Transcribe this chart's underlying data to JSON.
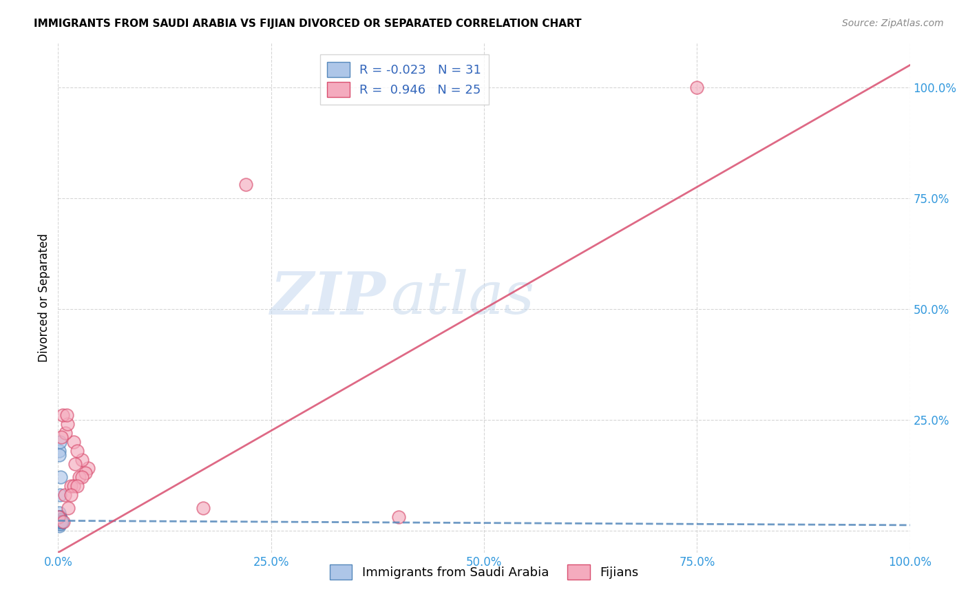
{
  "title": "IMMIGRANTS FROM SAUDI ARABIA VS FIJIAN DIVORCED OR SEPARATED CORRELATION CHART",
  "source": "Source: ZipAtlas.com",
  "ylabel": "Divorced or Separated",
  "legend_blue_r": "-0.023",
  "legend_blue_n": "31",
  "legend_pink_r": "0.946",
  "legend_pink_n": "25",
  "legend_blue_label": "Immigrants from Saudi Arabia",
  "legend_pink_label": "Fijians",
  "blue_color": "#aec6e8",
  "pink_color": "#f4abbe",
  "line_blue_color": "#5588bb",
  "line_pink_color": "#d94f70",
  "watermark_zip": "ZIP",
  "watermark_atlas": "atlas",
  "blue_scatter_x": [
    0.1,
    0.2,
    0.3,
    0.15,
    0.4,
    0.25,
    0.12,
    0.35,
    0.45,
    0.22,
    0.18,
    0.28,
    0.14,
    0.32,
    0.24,
    0.42,
    0.11,
    0.21,
    0.31,
    0.13,
    0.23,
    0.38,
    0.16,
    0.33,
    0.27,
    0.1,
    0.48,
    0.26,
    0.36,
    0.19,
    0.44
  ],
  "blue_scatter_y": [
    2.0,
    3.0,
    2.0,
    4.0,
    2.0,
    3.0,
    1.0,
    2.0,
    2.0,
    3.0,
    1.5,
    2.5,
    2.0,
    2.0,
    3.0,
    2.0,
    2.0,
    1.5,
    2.0,
    18.0,
    20.0,
    2.0,
    17.0,
    2.0,
    2.5,
    2.0,
    2.0,
    12.0,
    2.0,
    8.0,
    2.0
  ],
  "pink_scatter_x": [
    0.05,
    0.8,
    1.5,
    2.5,
    3.5,
    2.8,
    1.8,
    0.9,
    2.2,
    1.1,
    1.8,
    3.2,
    1.2,
    0.4,
    2.0,
    2.8,
    2.2,
    17.0,
    40.0,
    0.5,
    1.0,
    0.6,
    1.5,
    75.0,
    22.0
  ],
  "pink_scatter_y": [
    3.0,
    8.0,
    10.0,
    12.0,
    14.0,
    16.0,
    20.0,
    22.0,
    18.0,
    24.0,
    10.0,
    13.0,
    5.0,
    21.0,
    15.0,
    12.0,
    10.0,
    5.0,
    3.0,
    26.0,
    26.0,
    2.0,
    8.0,
    100.0,
    78.0
  ],
  "blue_line_x": [
    0.0,
    100.0
  ],
  "blue_line_y": [
    2.2,
    1.2
  ],
  "pink_line_x": [
    0.0,
    100.0
  ],
  "pink_line_y": [
    -5.0,
    105.0
  ],
  "xmin": 0.0,
  "xmax": 100.0,
  "ymin": -5.0,
  "ymax": 110.0,
  "yticks": [
    0.0,
    25.0,
    50.0,
    75.0,
    100.0
  ],
  "xticks": [
    0.0,
    25.0,
    50.0,
    75.0,
    100.0
  ],
  "xtick_labels": [
    "0.0%",
    "25.0%",
    "50.0%",
    "75.0%",
    "100.0%"
  ],
  "ytick_labels": [
    "",
    "25.0%",
    "50.0%",
    "75.0%",
    "100.0%"
  ],
  "tick_color": "#3399dd",
  "grid_color": "#cccccc",
  "title_fontsize": 11,
  "axis_fontsize": 12
}
